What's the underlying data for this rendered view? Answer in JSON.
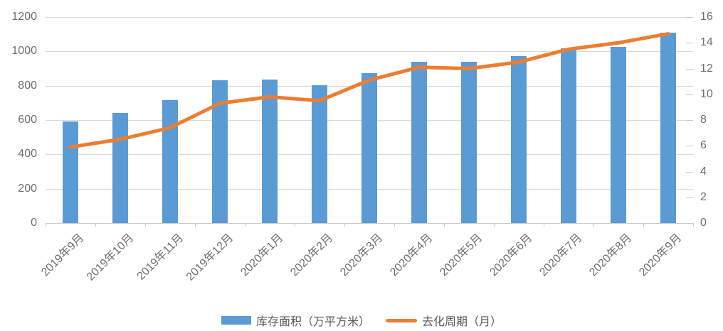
{
  "chart_data": {
    "type": "bar",
    "subtype": "combo-bar-line-dual-axis",
    "categories": [
      "2019年9月",
      "2019年10月",
      "2019年11月",
      "2019年12月",
      "2020年1月",
      "2020年2月",
      "2020年3月",
      "2020年4月",
      "2020年5月",
      "2020年6月",
      "2020年7月",
      "2020年8月",
      "2020年9月"
    ],
    "series": [
      {
        "name": "库存面积（万平方米）",
        "chart_type": "bar",
        "axis": "left",
        "color": "#5b9bd5",
        "values": [
          592,
          643,
          716,
          830,
          834,
          801,
          872,
          941,
          938,
          971,
          1019,
          1027,
          1107
        ]
      },
      {
        "name": "去化周期（月）",
        "chart_type": "line",
        "axis": "right",
        "color": "#ed7d31",
        "values": [
          5.9,
          6.5,
          7.4,
          9.3,
          9.8,
          9.5,
          11.1,
          12.1,
          12.0,
          12.5,
          13.5,
          14.0,
          14.7
        ]
      }
    ],
    "title": "",
    "xlabel": "",
    "ylabel_left": "",
    "ylabel_right": "",
    "left_axis": {
      "min": 0,
      "max": 1200,
      "step": 200,
      "ticks": [
        "0",
        "200",
        "400",
        "600",
        "800",
        "1000",
        "1200"
      ]
    },
    "right_axis": {
      "min": 0,
      "max": 16,
      "step": 2,
      "ticks": [
        "0",
        "2",
        "4",
        "6",
        "8",
        "10",
        "12",
        "14",
        "16"
      ]
    },
    "grid": true,
    "legend_position": "bottom"
  },
  "legend": {
    "items": [
      {
        "label": "库存面积（万平方米）",
        "swatch": "bar",
        "color": "#5b9bd5"
      },
      {
        "label": "去化周期（月）",
        "swatch": "line",
        "color": "#ed7d31"
      }
    ]
  },
  "colors": {
    "bar": "#5b9bd5",
    "line": "#ed7d31",
    "grid": "#d9d9d9",
    "axis_text": "#6e6e6e",
    "legend_text": "#595959"
  }
}
